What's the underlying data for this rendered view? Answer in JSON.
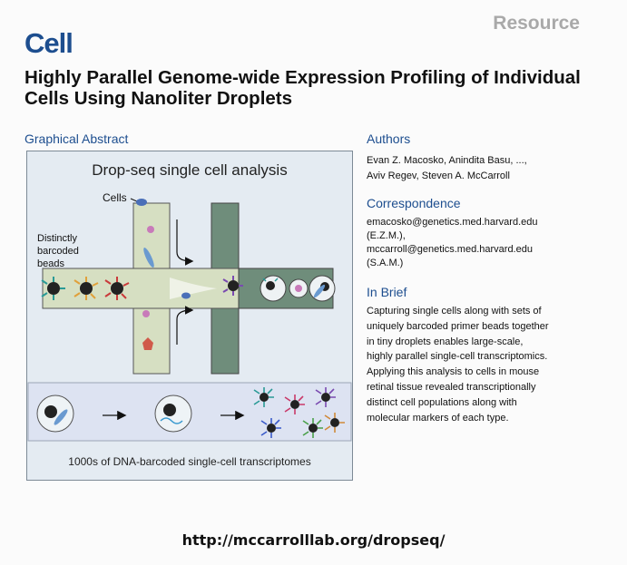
{
  "header": {
    "journal": "Cell",
    "label": "Resource",
    "title": "Highly Parallel Genome-wide Expression Profiling of Individual Cells Using Nanoliter Droplets"
  },
  "graphical_abstract": {
    "heading": "Graphical Abstract",
    "figure_title": "Drop-seq single cell analysis",
    "cells_label": "Cells",
    "beads_label": [
      "Distinctly",
      "barcoded",
      "beads"
    ],
    "caption": "1000s of DNA-barcoded single-cell transcriptomes"
  },
  "authors": {
    "heading": "Authors",
    "line1": "Evan Z. Macosko, Anindita Basu, ...,",
    "line2": "Aviv Regev, Steven A. McCarroll"
  },
  "correspondence": {
    "heading": "Correspondence",
    "lines": [
      "emacosko@genetics.med.harvard.edu",
      "(E.Z.M.),",
      "mccarroll@genetics.med.harvard.edu",
      "(S.A.M.)"
    ]
  },
  "in_brief": {
    "heading": "In Brief",
    "lines": [
      "Capturing single cells along with sets of",
      "uniquely barcoded primer beads together",
      "in tiny droplets enables large-scale,",
      "highly parallel single-cell transcriptomics.",
      "Applying this analysis to cells in mouse",
      "retinal tissue revealed transcriptionally",
      "distinct cell populations along with",
      "molecular markers of each type."
    ]
  },
  "footer": {
    "url": "http://mccarrolllab.org/dropseq/"
  }
}
